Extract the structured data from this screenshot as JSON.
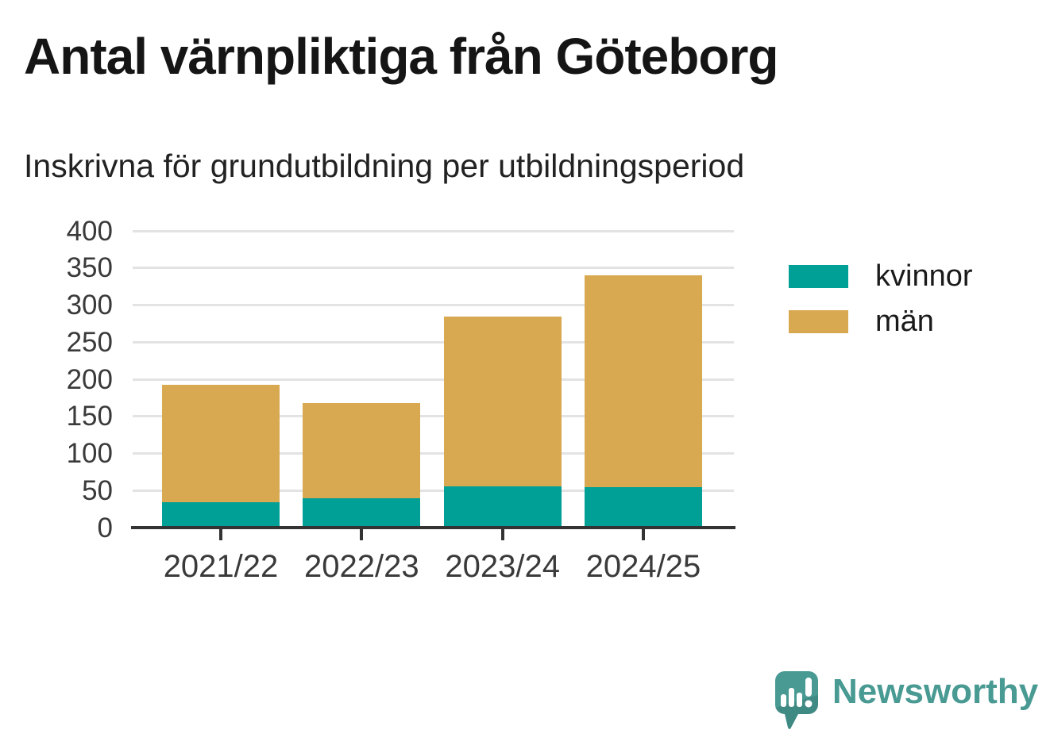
{
  "title": "Antal värnpliktiga från Göteborg",
  "subtitle": "Inskrivna för grundutbildning per utbildningsperiod",
  "colors": {
    "kvinnor": "#00a096",
    "man": "#d9a952",
    "grid": "#e3e3e3",
    "axis": "#333333",
    "brand": "#489a93"
  },
  "legend": {
    "items": [
      {
        "label": "kvinnor",
        "color": "#00a096"
      },
      {
        "label": "män",
        "color": "#d9a952"
      }
    ]
  },
  "branding": {
    "name": "Newsworthy"
  },
  "chart_data": {
    "type": "bar",
    "stacked": true,
    "title": "Antal värnpliktiga från Göteborg",
    "subtitle": "Inskrivna för grundutbildning per utbildningsperiod",
    "categories": [
      "2021/22",
      "2022/23",
      "2023/24",
      "2024/25"
    ],
    "series": [
      {
        "name": "kvinnor",
        "color": "#00a096",
        "values": [
          34,
          40,
          56,
          55
        ]
      },
      {
        "name": "män",
        "color": "#d9a952",
        "values": [
          158,
          128,
          228,
          285
        ]
      }
    ],
    "totals": [
      192,
      168,
      284,
      340
    ],
    "xlabel": "",
    "ylabel": "",
    "ylim": [
      0,
      400
    ],
    "yticks": [
      0,
      50,
      100,
      150,
      200,
      250,
      300,
      350,
      400
    ],
    "grid": true,
    "legend_position": "right"
  }
}
